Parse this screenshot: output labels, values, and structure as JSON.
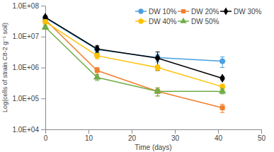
{
  "chart_data": {
    "type": "line",
    "x_label": "Time (days)",
    "y_label": "Log(cells of strain C8-2 g⁻¹ soil)",
    "x": [
      0,
      12,
      26,
      41
    ],
    "series": [
      {
        "name": "DW 10%",
        "color": "#4a9fe0",
        "marker": "circle",
        "values": [
          40000000,
          3800000,
          2100000,
          1600000
        ],
        "errors": [
          5000000,
          1000000,
          600000,
          600000
        ]
      },
      {
        "name": "DW 20%",
        "color": "#f07f2e",
        "marker": "square",
        "values": [
          35000000,
          800000,
          170000,
          50000
        ],
        "errors": [
          5000000,
          200000,
          50000,
          15000
        ]
      },
      {
        "name": "DW 30%",
        "color": "#000000",
        "marker": "diamond",
        "values": [
          42000000,
          4000000,
          2000000,
          450000
        ],
        "errors": [
          5000000,
          1000000,
          1200000,
          50000
        ]
      },
      {
        "name": "DW 40%",
        "color": "#ffc000",
        "marker": "circle",
        "values": [
          30000000,
          2400000,
          1000000,
          240000
        ],
        "errors": [
          4000000,
          500000,
          200000,
          50000
        ]
      },
      {
        "name": "DW 50%",
        "color": "#70ad47",
        "marker": "triangle",
        "values": [
          20000000,
          480000,
          170000,
          170000
        ],
        "errors": [
          3000000,
          100000,
          50000,
          30000
        ]
      }
    ],
    "xlim": [
      0,
      50
    ],
    "xticks": [
      0,
      10,
      20,
      30,
      40,
      50
    ],
    "ylim": [
      10000,
      100000000
    ],
    "yticks": [
      {
        "value": 10000,
        "label": "1.0E+04"
      },
      {
        "value": 100000,
        "label": "1.0E+05"
      },
      {
        "value": 1000000,
        "label": "1.0E+06"
      },
      {
        "value": 10000000,
        "label": "1.0E+07"
      },
      {
        "value": 100000000,
        "label": "1.0E+08"
      }
    ],
    "log": "y",
    "grid": false,
    "legend": "top-right"
  }
}
